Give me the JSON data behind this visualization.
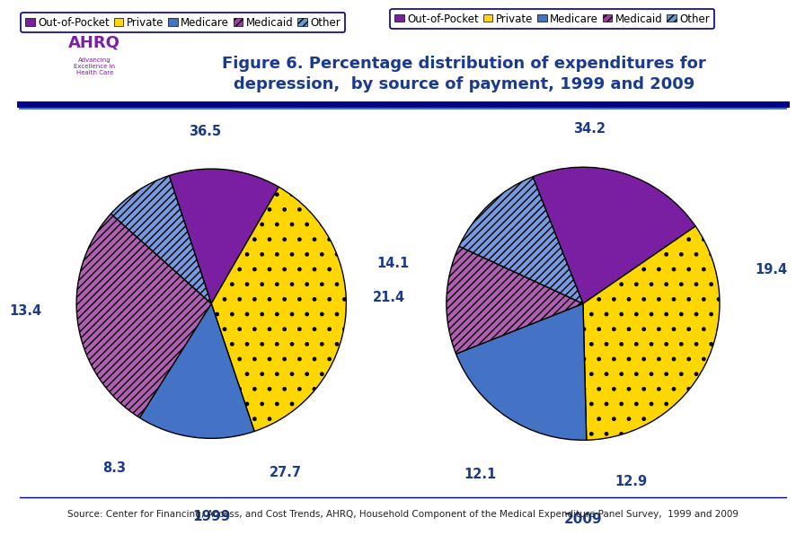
{
  "title_line1": "Figure 6. Percentage distribution of expenditures for",
  "title_line2": "depression,  by source of payment, 1999 and 2009",
  "title_color": "#1a3a8c",
  "title_fontsize": 13,
  "background_color": "#ffffff",
  "source_text": "Source: Center for Financing, Access, and Cost Trends, AHRQ, Household Component of the Medical Expenditure Panel Survey,  1999 and 2009",
  "pie1_year": "1999",
  "pie2_year": "2009",
  "categories": [
    "Out-of-Pocket",
    "Private",
    "Medicare",
    "Medicaid",
    "Other"
  ],
  "colors_solid": [
    "#7b1fa2",
    "#ffd700",
    "#4472c4",
    "#7b1fa2",
    "#4472c4"
  ],
  "hatches": [
    "",
    ".",
    "",
    "////",
    "////"
  ],
  "pie1_values": [
    13.4,
    36.5,
    14.1,
    27.7,
    8.3
  ],
  "pie2_values": [
    21.4,
    34.2,
    19.4,
    12.9,
    12.1
  ],
  "pie1_labels": [
    "13.4",
    "36.5",
    "14.1",
    "27.7",
    "8.3"
  ],
  "pie2_labels": [
    "21.4",
    "34.2",
    "19.4",
    "12.9",
    "12.1"
  ],
  "label_color": "#1a3a8c",
  "year_label_color": "#1a3a8c",
  "border_color": "#00008b",
  "legend_border_color": "#00008b",
  "legend_fontsize": 8.5,
  "source_fontsize": 7.5,
  "pie1_startangle": 108.25,
  "pie2_startangle": 111.6,
  "legend_colors": [
    "#7b1fa2",
    "#ffd700",
    "#4472c4",
    "#9c3fa2",
    "#6699cc"
  ],
  "legend_hatches": [
    "",
    "",
    "",
    "////",
    "////"
  ]
}
